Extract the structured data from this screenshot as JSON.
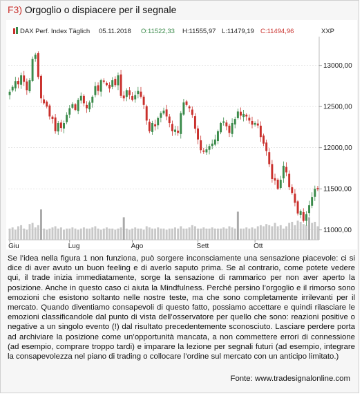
{
  "figure": {
    "number": "F3)",
    "title": "Orgoglio o dispiacere per il segnale"
  },
  "body_text": "Se l’idea nella figura 1 non funziona, può sorgere inconsciamente una sensazione piacevole: ci si dice di aver avuto un buon feeling e di averlo saputo prima. Se al contrario, come potete vedere qui, il trade inizia immediatamente, sorge la sensazione di rammarico per non aver aperto la posizione. Anche in questo caso ci aiuta la Mindfulness. Perché persino l’orgoglio e il rimorso sono emozioni che esistono soltanto nelle nostre teste, ma che sono completamente irrilevanti per il mercato. Quando diventiamo consapevoli di questo fatto, possiamo accettare e quindi rilasciare le emozioni classificandole dal punto di vista dell’osservatore per quello che sono: reazioni positive o negative a un singolo evento (!) dal risultato precedentemente sconosciuto. Lasciare perdere porta ad archiviare la posizione come un’opportunità mancata, a non commettere errori di connessione (ad esempio, comprare troppo tardi) e imparare la lezione per segnali futuri (ad esempio, integrare la consapevolezza nel piano di trading o collocare l’ordine sul mercato con un anticipo limitato.)",
  "source": "Fonte: www.tradesignalonline.com",
  "colors": {
    "up": "#3a8a4a",
    "down": "#c9302c",
    "volume": "#c8c8c8",
    "volume_highlight": "#a9a9a9",
    "grid": "#d8d8d8",
    "title_accent": "#c9302c"
  },
  "chart_data": {
    "type": "candlestick",
    "header": {
      "symbol": "DAX Perf. Index Täglich",
      "date": "05.11.2018",
      "open_label": "O:11522,33",
      "high_label": "H:11555,97",
      "low_label": "L:11479,19",
      "close_label": "C:11494,96",
      "currency": "XXP"
    },
    "ylim": [
      10880,
      13300
    ],
    "y_ticks": [
      13000,
      12500,
      12000,
      11500,
      11000
    ],
    "y_tick_labels": [
      "13000,00",
      "12500,00",
      "12000,00",
      "11500,00",
      "11000,00"
    ],
    "x_labels": [
      {
        "label": "Giu",
        "index": 0
      },
      {
        "label": "Lug",
        "index": 21
      },
      {
        "label": "Ago",
        "index": 43
      },
      {
        "label": "Sett",
        "index": 66
      },
      {
        "label": "Ott",
        "index": 86
      }
    ],
    "close": [
      12680,
      12740,
      12810,
      12770,
      12880,
      12800,
      12700,
      12820,
      13080,
      13130,
      12860,
      12600,
      12540,
      12500,
      12380,
      12350,
      12200,
      12300,
      12240,
      12300,
      12400,
      12480,
      12530,
      12460,
      12580,
      12630,
      12540,
      12480,
      12550,
      12620,
      12750,
      12690,
      12820,
      12800,
      12760,
      12720,
      12820,
      12760,
      12880,
      12630,
      12600,
      12700,
      12640,
      12580,
      12640,
      12690,
      12620,
      12520,
      12330,
      12200,
      12300,
      12260,
      12360,
      12420,
      12450,
      12380,
      12300,
      12200,
      12220,
      12180,
      12420,
      12550,
      12520,
      12480,
      12400,
      12230,
      12100,
      11970,
      11950,
      11980,
      12020,
      12050,
      12100,
      12200,
      12300,
      12320,
      12260,
      12180,
      12300,
      12350,
      12440,
      12390,
      12410,
      12380,
      12330,
      12280,
      12300,
      12270,
      12130,
      12050,
      11960,
      11800,
      11620,
      11600,
      11500,
      11610,
      11780,
      11700,
      11520,
      11450,
      11330,
      11200,
      11230,
      11110,
      11190,
      11300,
      11400,
      11500,
      11494.96
    ],
    "volume": [
      1.0,
      1.1,
      0.9,
      1.2,
      1.3,
      1.0,
      0.9,
      1.4,
      1.5,
      1.1,
      1.3,
      2.7,
      1.0,
      0.9,
      1.0,
      1.1,
      1.2,
      1.0,
      1.1,
      0.9,
      1.0,
      1.0,
      1.1,
      1.0,
      0.9,
      1.0,
      1.1,
      1.0,
      1.0,
      1.1,
      1.2,
      1.0,
      0.9,
      1.0,
      1.1,
      1.0,
      1.0,
      0.9,
      1.0,
      1.1,
      2.0,
      1.0,
      0.9,
      1.0,
      1.1,
      1.0,
      1.0,
      0.9,
      1.2,
      1.1,
      1.0,
      1.0,
      1.1,
      1.0,
      1.0,
      0.9,
      1.0,
      1.0,
      1.1,
      1.0,
      1.2,
      1.0,
      1.0,
      1.1,
      1.3,
      1.2,
      1.0,
      1.0,
      1.1,
      1.0,
      1.0,
      1.1,
      1.0,
      1.0,
      1.0,
      1.1,
      1.0,
      1.2,
      1.1,
      1.0,
      2.5,
      1.0,
      1.0,
      1.1,
      1.0,
      1.1,
      1.0,
      1.2,
      1.3,
      1.2,
      1.4,
      1.3,
      1.2,
      1.5,
      1.2,
      1.3,
      1.0,
      1.2,
      1.5,
      1.6,
      1.3,
      1.7,
      1.6,
      1.4,
      1.3,
      2.0,
      1.5,
      1.6,
      1.2
    ],
    "highlight_volume_index": [
      11,
      40,
      80,
      105
    ]
  }
}
